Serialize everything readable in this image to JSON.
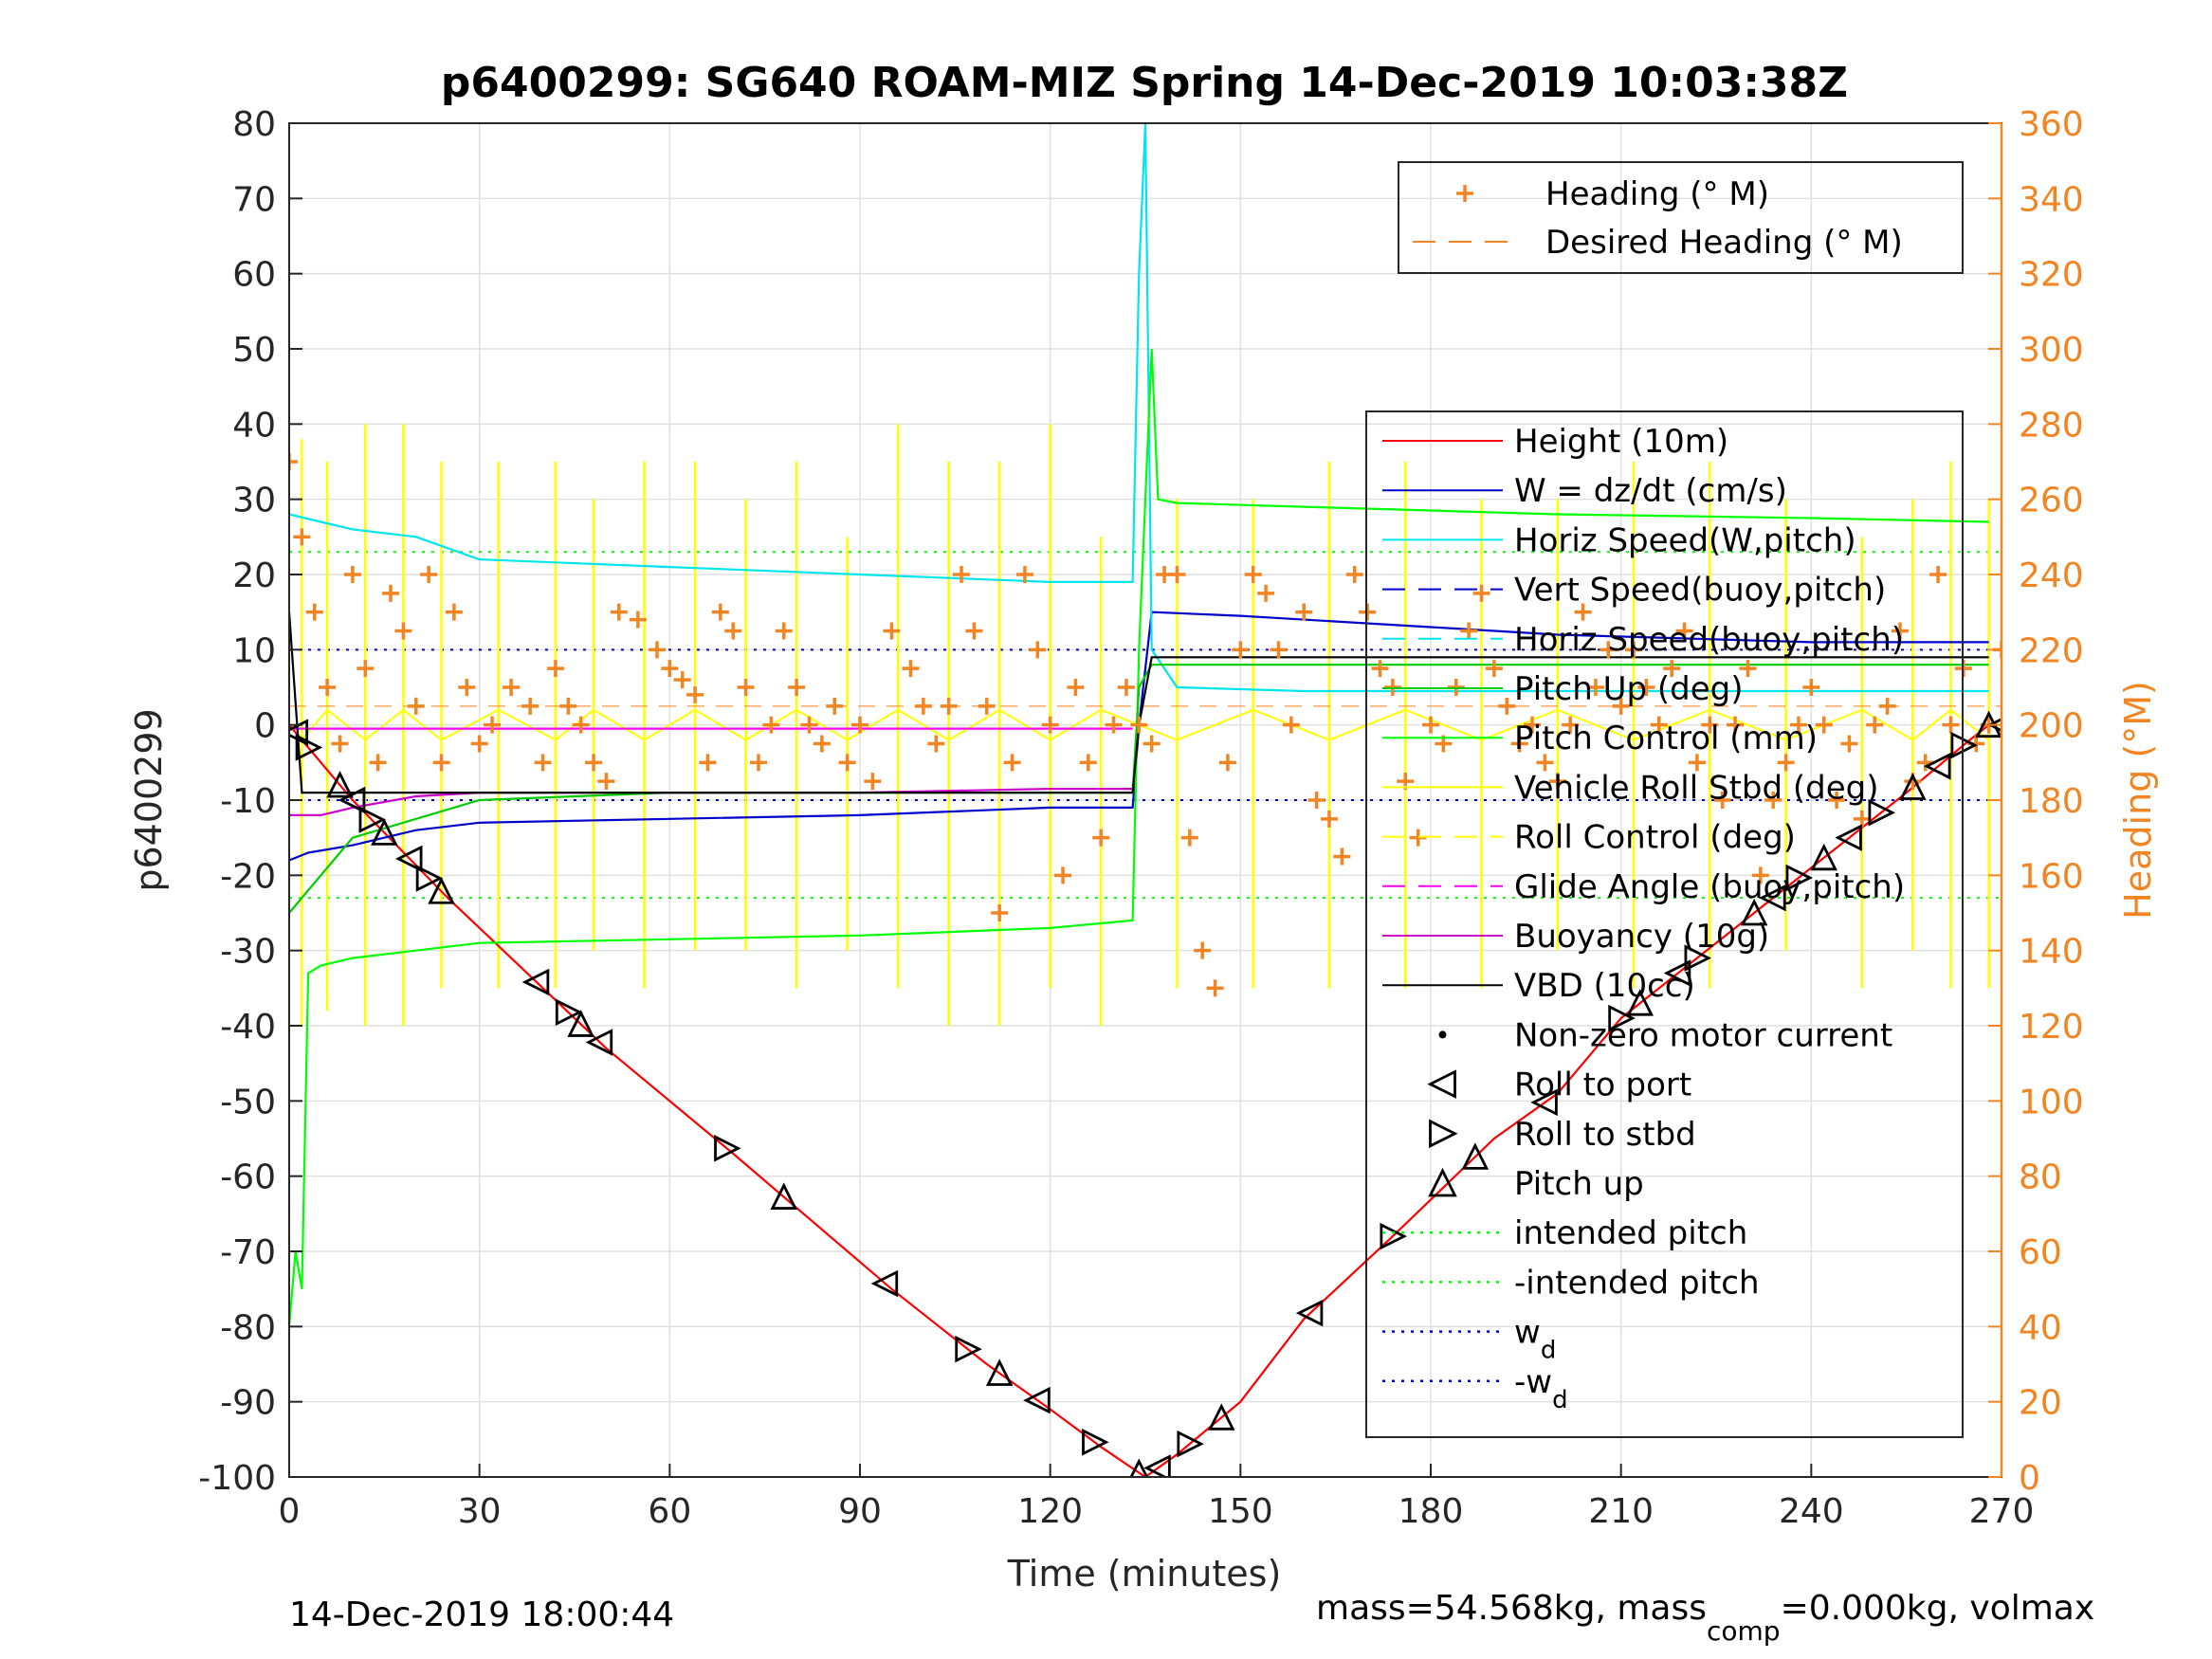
{
  "chart_data": {
    "type": "line",
    "title": "p6400299: SG640 ROAM-MIZ Spring 14-Dec-2019 10:03:38Z",
    "xlabel": "Time (minutes)",
    "ylabel": "p6400299",
    "y2label": "Heading (°M)",
    "xlim": [
      0,
      270
    ],
    "ylim": [
      -100,
      80
    ],
    "y2lim": [
      0,
      360
    ],
    "x_ticks": [
      0,
      30,
      60,
      90,
      120,
      150,
      180,
      210,
      240,
      270
    ],
    "y_ticks": [
      -100,
      -90,
      -80,
      -70,
      -60,
      -50,
      -40,
      -30,
      -20,
      -10,
      0,
      10,
      20,
      30,
      40,
      50,
      60,
      70,
      80
    ],
    "y2_ticks": [
      0,
      20,
      40,
      60,
      80,
      100,
      120,
      140,
      160,
      180,
      200,
      220,
      240,
      260,
      280,
      300,
      320,
      340,
      360
    ],
    "grid": true,
    "footer_left": "14-Dec-2019 18:00:44",
    "footer_right": "mass=54.568kg, mass",
    "footer_right_sub": "comp",
    "footer_right_tail": "=0.000kg, volmax",
    "legend_top": [
      {
        "label": "Heading (° M)",
        "color": "#f28522",
        "style": "plus"
      },
      {
        "label": "Desired Heading (° M)",
        "color": "#f28522",
        "style": "dash"
      }
    ],
    "legend_main": [
      {
        "label": "Height (10m)",
        "color": "#ff0000",
        "style": "solid"
      },
      {
        "label": "W = dz/dt (cm/s)",
        "color": "#0000cc",
        "style": "solid"
      },
      {
        "label": "Horiz Speed(W,pitch)",
        "color": "#00e5ee",
        "style": "solid"
      },
      {
        "label": "Vert Speed(buoy,pitch)",
        "color": "#0000cc",
        "style": "dash"
      },
      {
        "label": "Horiz Speed(buoy,pitch)",
        "color": "#00e5ee",
        "style": "dash"
      },
      {
        "label": "Pitch Up (deg)",
        "color": "#00cc00",
        "style": "solid"
      },
      {
        "label": "Pitch Control (mm)",
        "color": "#00ff00",
        "style": "solid"
      },
      {
        "label": "Vehicle Roll Stbd (deg)",
        "color": "#ffff00",
        "style": "solid"
      },
      {
        "label": "Roll Control (deg)",
        "color": "#ffff00",
        "style": "dash"
      },
      {
        "label": "Glide Angle (buoy,pitch)",
        "color": "#ff00ff",
        "style": "dash"
      },
      {
        "label": "Buoyancy (10g)",
        "color": "#cc00cc",
        "style": "solid"
      },
      {
        "label": "VBD (10cc)",
        "color": "#000000",
        "style": "solid"
      },
      {
        "label": "Non-zero motor current",
        "color": "#000000",
        "style": "dot"
      },
      {
        "label": "Roll to port",
        "color": "#000000",
        "style": "tri-left"
      },
      {
        "label": "Roll to stbd",
        "color": "#000000",
        "style": "tri-right"
      },
      {
        "label": "Pitch up",
        "color": "#000000",
        "style": "tri-up"
      },
      {
        "label": "intended pitch",
        "color": "#00ff00",
        "style": "dotted"
      },
      {
        "label": "-intended pitch",
        "color": "#00ff00",
        "style": "dotted"
      },
      {
        "label": "w",
        "sub": "d",
        "color": "#0000cc",
        "style": "dotted"
      },
      {
        "label": "-w",
        "sub": "d",
        "color": "#0000cc",
        "style": "dotted"
      }
    ],
    "series": [
      {
        "name": "Height (10m)",
        "color": "#ff0000",
        "x": [
          0,
          10,
          25,
          40,
          50,
          70,
          95,
          110,
          120,
          128,
          135,
          140,
          150,
          160,
          174,
          190,
          200,
          210,
          225,
          240,
          255,
          265,
          268
        ],
        "y": [
          0,
          -10,
          -23,
          -35,
          -43,
          -57,
          -75,
          -85,
          -91,
          -96,
          -100,
          -97,
          -90,
          -79,
          -68,
          -55,
          -49,
          -39,
          -29,
          -19,
          -9,
          -2,
          0
        ]
      },
      {
        "name": "W = dz/dt (cm/s)",
        "color": "#0000cc",
        "x": [
          0,
          3,
          10,
          20,
          30,
          60,
          90,
          120,
          133,
          134,
          136,
          150,
          180,
          200,
          240,
          260,
          268
        ],
        "y": [
          -18,
          -17,
          -16,
          -14,
          -13,
          -12.5,
          -12,
          -11,
          -11,
          0,
          15,
          14.5,
          13,
          12,
          11,
          11,
          11
        ]
      },
      {
        "name": "Horiz Speed(W,pitch)",
        "color": "#00e5ee",
        "x": [
          0,
          5,
          10,
          20,
          30,
          60,
          90,
          120,
          133,
          134,
          135,
          136,
          140,
          160,
          200,
          240,
          268
        ],
        "y": [
          28,
          27,
          26,
          25,
          22,
          21,
          20,
          19,
          19,
          60,
          80,
          10,
          5,
          4.5,
          4.5,
          4.5,
          4.5
        ]
      },
      {
        "name": "Pitch Control (mm)",
        "color": "#00ff00",
        "x": [
          0,
          1,
          2,
          3,
          5,
          10,
          20,
          30,
          60,
          90,
          120,
          133,
          134,
          136,
          137,
          140,
          160,
          200,
          240,
          268
        ],
        "y": [
          -80,
          -70,
          -75,
          -33,
          -32,
          -31,
          -30,
          -29,
          -28.5,
          -28,
          -27,
          -26,
          10,
          50,
          30,
          29.5,
          29,
          28,
          27.5,
          27
        ]
      },
      {
        "name": "Pitch Up (deg)",
        "color": "#00cc00",
        "x": [
          0,
          5,
          10,
          30,
          60,
          90,
          120,
          133,
          134,
          136,
          160,
          200,
          240,
          268
        ],
        "y": [
          -25,
          -20,
          -15,
          -10,
          -9,
          -9,
          -9,
          -9,
          5,
          8,
          8,
          8,
          8,
          8
        ]
      },
      {
        "name": "Buoyancy (10g)",
        "color": "#cc00cc",
        "x": [
          0,
          5,
          10,
          20,
          30,
          60,
          90,
          120,
          133
        ],
        "y": [
          -12,
          -12,
          -11,
          -9.5,
          -9,
          -9,
          -9,
          -8.5,
          -8.5
        ]
      },
      {
        "name": "Glide Angle (buoy,pitch)",
        "color": "#ff00ff",
        "x": [
          0,
          133
        ],
        "y": [
          -0.5,
          -0.5
        ]
      },
      {
        "name": "VBD (10cc)",
        "color": "#000000",
        "x": [
          0,
          2,
          10,
          30,
          60,
          90,
          120,
          133,
          134,
          136,
          150,
          180,
          210,
          240,
          268
        ],
        "y": [
          15,
          -9,
          -9,
          -9,
          -9,
          -9,
          -9,
          -9,
          0,
          9,
          9,
          9,
          9,
          9,
          9
        ]
      }
    ],
    "reference_lines": [
      {
        "name": "intended pitch",
        "y": 23,
        "color": "#00ff00"
      },
      {
        "name": "-intended pitch",
        "y": -23,
        "color": "#00ff00"
      },
      {
        "name": "w_d",
        "y": 10,
        "color": "#0000cc"
      },
      {
        "name": "-w_d",
        "y": -10,
        "color": "#0000cc"
      }
    ],
    "roll_control": {
      "name": "Roll Control (deg)",
      "color": "#ffff00",
      "x": [
        2,
        6,
        12,
        18,
        24,
        33,
        42,
        48,
        56,
        64,
        72,
        80,
        88,
        96,
        104,
        112,
        120,
        128,
        140,
        152,
        164,
        176,
        188,
        200,
        212,
        224,
        236,
        248,
        256,
        262,
        268
      ],
      "high": [
        38,
        35,
        40,
        40,
        35,
        35,
        35,
        30,
        35,
        35,
        30,
        35,
        25,
        40,
        35,
        35,
        40,
        25,
        30,
        30,
        35,
        35,
        30,
        30,
        35,
        35,
        30,
        25,
        30,
        35,
        30
      ],
      "low": [
        -40,
        -38,
        -40,
        -40,
        -35,
        -35,
        -35,
        -30,
        -35,
        -30,
        -30,
        -35,
        -30,
        -35,
        -40,
        -40,
        -35,
        -40,
        -35,
        -35,
        -35,
        -35,
        -35,
        -30,
        -35,
        -35,
        -30,
        -35,
        -30,
        -35,
        -35
      ]
    },
    "heading": {
      "name": "Heading (° M)",
      "color": "#f28522",
      "x": [
        0,
        2,
        4,
        6,
        8,
        10,
        12,
        14,
        16,
        18,
        20,
        22,
        24,
        26,
        28,
        30,
        32,
        35,
        38,
        40,
        42,
        44,
        46,
        48,
        50,
        52,
        55,
        58,
        60,
        62,
        64,
        66,
        68,
        70,
        72,
        74,
        76,
        78,
        80,
        82,
        84,
        86,
        88,
        90,
        92,
        95,
        98,
        100,
        102,
        104,
        106,
        108,
        110,
        112,
        114,
        116,
        118,
        120,
        122,
        124,
        126,
        128,
        130,
        132,
        134,
        136,
        138,
        140,
        142,
        144,
        146,
        148,
        150,
        152,
        154,
        156,
        158,
        160,
        162,
        164,
        166,
        168,
        170,
        172,
        174,
        176,
        178,
        180,
        182,
        184,
        186,
        188,
        190,
        192,
        194,
        196,
        198,
        200,
        202,
        204,
        206,
        208,
        210,
        212,
        214,
        216,
        218,
        220,
        222,
        224,
        226,
        228,
        230,
        232,
        234,
        236,
        238,
        240,
        242,
        244,
        246,
        248,
        250,
        252,
        254,
        256,
        258,
        260,
        262,
        264,
        266,
        268,
        270
      ],
      "y": [
        270,
        250,
        230,
        210,
        195,
        240,
        215,
        190,
        235,
        225,
        205,
        240,
        190,
        230,
        210,
        195,
        200,
        210,
        205,
        190,
        215,
        205,
        200,
        190,
        185,
        230,
        228,
        220,
        215,
        212,
        208,
        190,
        230,
        225,
        210,
        190,
        200,
        225,
        210,
        200,
        195,
        205,
        190,
        200,
        185,
        225,
        215,
        205,
        195,
        205,
        240,
        225,
        205,
        150,
        190,
        240,
        220,
        200,
        160,
        210,
        190,
        170,
        200,
        210,
        200,
        195,
        240,
        240,
        170,
        140,
        130,
        190,
        220,
        240,
        235,
        220,
        200,
        230,
        180,
        175,
        165,
        240,
        230,
        215,
        210,
        185,
        170,
        200,
        195,
        210,
        225,
        235,
        215,
        205,
        195,
        200,
        190,
        185,
        200,
        230,
        210,
        220,
        205,
        220,
        210,
        200,
        215,
        225,
        190,
        200,
        180,
        200,
        215,
        160,
        180,
        190,
        200,
        210,
        200,
        180,
        195,
        175,
        200,
        205,
        225,
        185,
        190,
        240,
        200,
        215,
        195,
        200,
        220
      ]
    }
  }
}
